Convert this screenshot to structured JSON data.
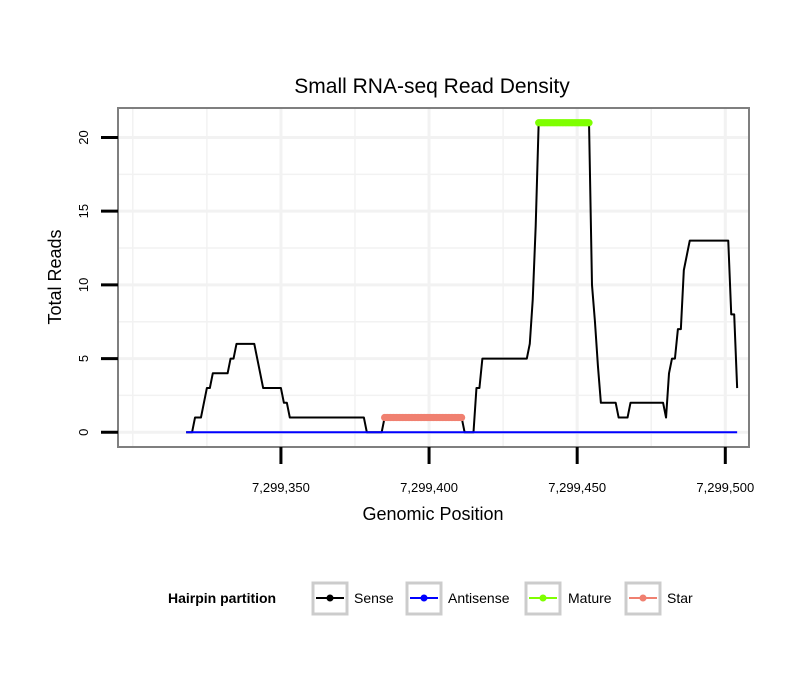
{
  "chart_data": {
    "type": "line",
    "title": "Small RNA-seq Read Density",
    "xlabel": "Genomic Position",
    "ylabel": "Total Reads",
    "xlim": [
      7299295,
      7299508
    ],
    "ylim": [
      -1,
      22
    ],
    "x_ticks": [
      7299350,
      7299400,
      7299450,
      7299500
    ],
    "x_tick_labels": [
      "7,299,350",
      "7,299,400",
      "7,299,450",
      "7,299,500"
    ],
    "y_ticks": [
      0,
      5,
      10,
      15,
      20
    ],
    "y_tick_labels": [
      "0",
      "5",
      "10",
      "15",
      "20"
    ],
    "grid": true,
    "legend": {
      "title": "Hairpin partition",
      "placement": "bottom",
      "entries": [
        "Sense",
        "Antisense",
        "Mature",
        "Star"
      ]
    },
    "series": [
      {
        "name": "Sense",
        "color": "#000000",
        "markers": false,
        "points": [
          [
            7299318,
            0
          ],
          [
            7299320,
            0
          ],
          [
            7299321,
            1
          ],
          [
            7299323,
            1
          ],
          [
            7299324,
            2
          ],
          [
            7299325,
            3
          ],
          [
            7299326,
            3
          ],
          [
            7299327,
            4
          ],
          [
            7299332,
            4
          ],
          [
            7299333,
            5
          ],
          [
            7299334,
            5
          ],
          [
            7299335,
            6
          ],
          [
            7299341,
            6
          ],
          [
            7299342,
            5
          ],
          [
            7299343,
            4
          ],
          [
            7299344,
            3
          ],
          [
            7299350,
            3
          ],
          [
            7299351,
            2
          ],
          [
            7299352,
            2
          ],
          [
            7299353,
            1
          ],
          [
            7299378,
            1
          ],
          [
            7299379,
            0
          ],
          [
            7299383,
            0
          ],
          [
            7299384,
            0
          ],
          [
            7299385,
            1
          ],
          [
            7299411,
            1
          ],
          [
            7299412,
            0
          ],
          [
            7299415,
            0
          ],
          [
            7299416,
            3
          ],
          [
            7299417,
            3
          ],
          [
            7299418,
            5
          ],
          [
            7299433,
            5
          ],
          [
            7299434,
            6
          ],
          [
            7299435,
            9
          ],
          [
            7299436,
            14
          ],
          [
            7299437,
            21
          ],
          [
            7299454,
            21
          ],
          [
            7299455,
            10
          ],
          [
            7299456,
            7.5
          ],
          [
            7299457,
            4.5
          ],
          [
            7299458,
            2
          ],
          [
            7299463,
            2
          ],
          [
            7299464,
            1
          ],
          [
            7299467,
            1
          ],
          [
            7299468,
            2
          ],
          [
            7299479,
            2
          ],
          [
            7299480,
            1
          ],
          [
            7299481,
            4
          ],
          [
            7299482,
            5
          ],
          [
            7299483,
            5
          ],
          [
            7299484,
            7
          ],
          [
            7299485,
            7
          ],
          [
            7299486,
            11
          ],
          [
            7299487,
            12
          ],
          [
            7299488,
            13
          ],
          [
            7299501,
            13
          ],
          [
            7299502,
            8
          ],
          [
            7299503,
            8
          ],
          [
            7299504,
            3
          ]
        ]
      },
      {
        "name": "Antisense",
        "color": "#0000ff",
        "markers": false,
        "points": [
          [
            7299318,
            0
          ],
          [
            7299504,
            0
          ]
        ]
      },
      {
        "name": "Mature",
        "color": "#7fff00",
        "markers": true,
        "x_range": [
          7299437,
          7299454
        ],
        "y": 21
      },
      {
        "name": "Star",
        "color": "#f08070",
        "markers": true,
        "x_range": [
          7299385,
          7299411
        ],
        "y": 1
      }
    ]
  }
}
